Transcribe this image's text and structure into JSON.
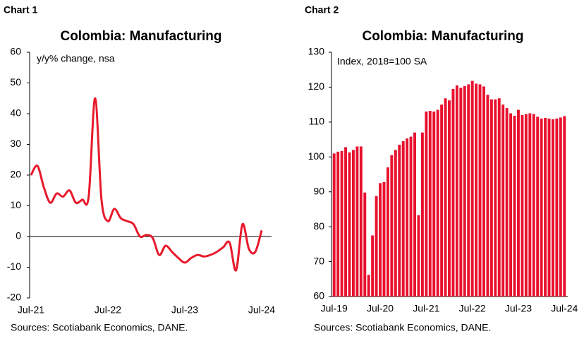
{
  "chart_data": [
    {
      "type": "line",
      "header": "Chart 1",
      "title": "Colombia: Manufacturing",
      "axis_label": "y/y% change, nsa",
      "source": "Sources: Scotiabank Economics, DANE.",
      "color": "#e8192c",
      "categories": [
        "Jul-21",
        null,
        null,
        null,
        null,
        null,
        null,
        null,
        null,
        null,
        null,
        null,
        "Jul-22",
        null,
        null,
        null,
        null,
        null,
        null,
        null,
        null,
        null,
        null,
        null,
        "Jul-23",
        null,
        null,
        null,
        null,
        null,
        null,
        null,
        null,
        null,
        null,
        null,
        "Jul-24"
      ],
      "values": [
        20,
        23,
        16,
        11,
        14,
        13,
        15,
        11,
        12,
        13,
        45,
        12,
        5,
        9,
        6,
        5,
        4,
        0,
        0.5,
        -0.5,
        -6,
        -3,
        -5,
        -7,
        -8.5,
        -7,
        -6,
        -6.5,
        -6,
        -5,
        -3.5,
        -2,
        -11,
        4,
        -4,
        -5,
        2
      ],
      "ylim": [
        -20,
        60
      ],
      "yticks": [
        -20,
        -10,
        0,
        10,
        20,
        30,
        40,
        50,
        60
      ]
    },
    {
      "type": "bar",
      "header": "Chart 2",
      "title": "Colombia: Manufacturing",
      "axis_label": "Index, 2018=100 SA",
      "source": "Sources: Scotiabank Economics, DANE.",
      "color": "#e8112d",
      "categories": [
        "Jul-19",
        null,
        null,
        null,
        null,
        null,
        null,
        null,
        null,
        null,
        null,
        null,
        "Jul-20",
        null,
        null,
        null,
        null,
        null,
        null,
        null,
        null,
        null,
        null,
        null,
        "Jul-21",
        null,
        null,
        null,
        null,
        null,
        null,
        null,
        null,
        null,
        null,
        null,
        "Jul-22",
        null,
        null,
        null,
        null,
        null,
        null,
        null,
        null,
        null,
        null,
        null,
        "Jul-23",
        null,
        null,
        null,
        null,
        null,
        null,
        null,
        null,
        null,
        null,
        null,
        "Jul-24"
      ],
      "values": [
        101,
        101.5,
        101.7,
        102.8,
        101.3,
        102,
        103,
        103,
        89.8,
        66.2,
        77.5,
        88.8,
        92.5,
        92.8,
        97,
        100.5,
        102,
        103.5,
        104.5,
        105.3,
        105.8,
        107,
        83.3,
        107,
        113,
        113.2,
        113,
        113.5,
        115,
        116.8,
        116.2,
        119.5,
        120.5,
        119.8,
        120.3,
        120.8,
        121.8,
        121,
        120.8,
        120.2,
        117.8,
        116.5,
        116.5,
        116.8,
        115,
        114,
        112.5,
        111.8,
        113.5,
        112,
        112.3,
        112.5,
        112.3,
        111.5,
        111,
        111.2,
        111,
        110.8,
        111,
        111.3,
        111.7
      ],
      "ylim": [
        60,
        130
      ],
      "yticks": [
        60,
        70,
        80,
        90,
        100,
        110,
        120,
        130
      ]
    }
  ]
}
